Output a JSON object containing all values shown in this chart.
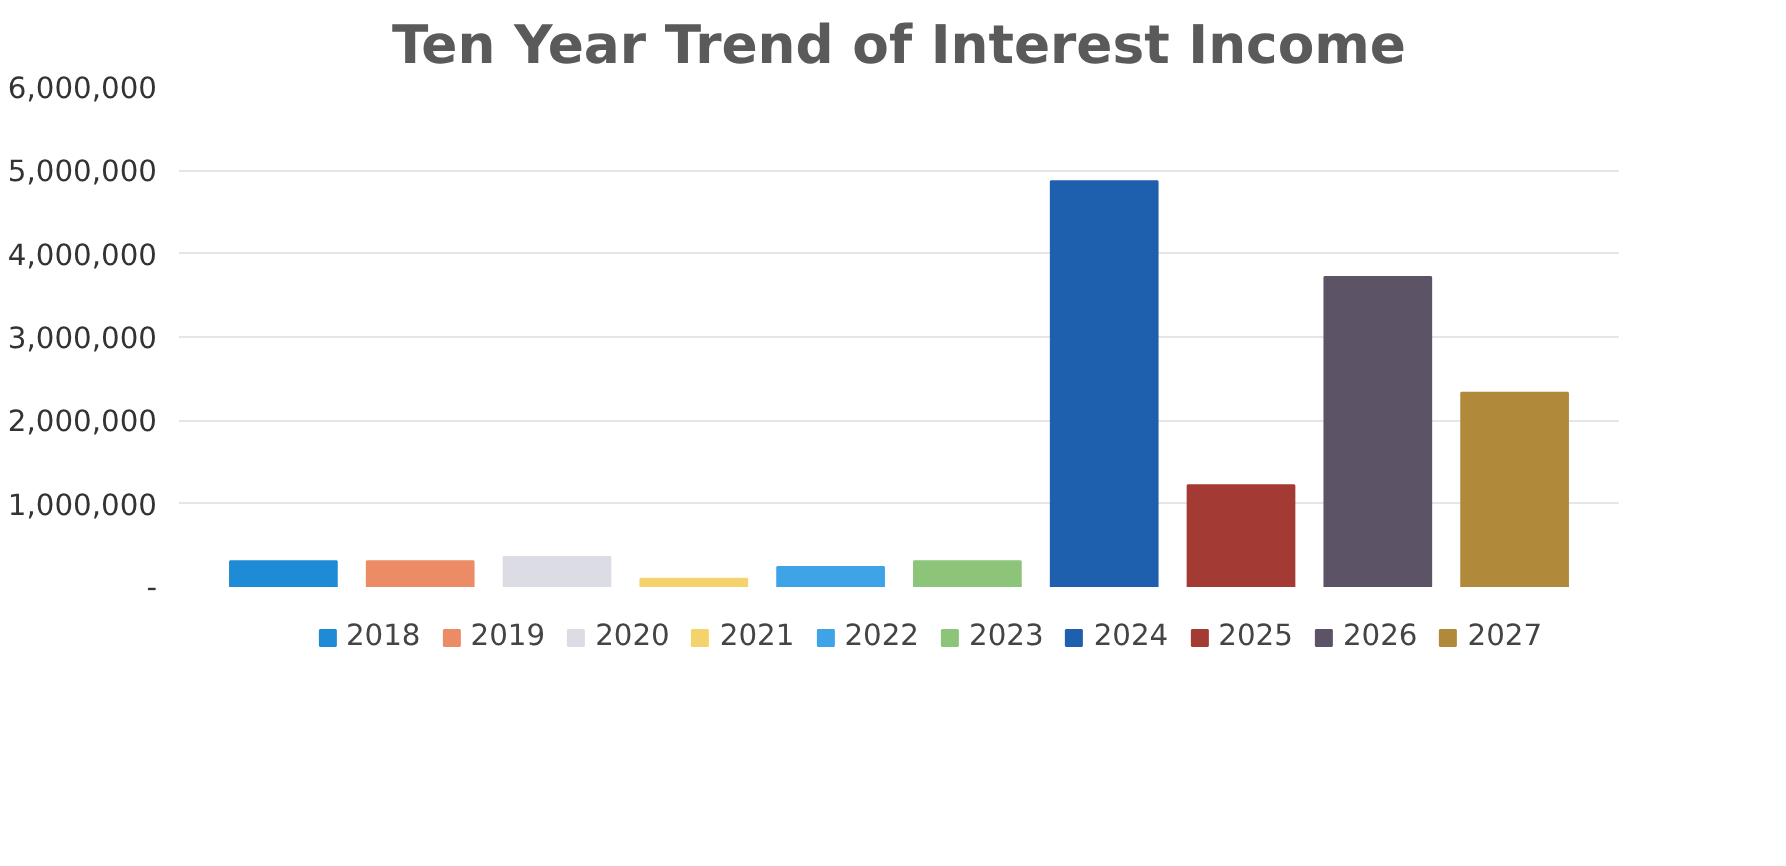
{
  "chart_data": {
    "type": "bar",
    "title": "Ten Year Trend of Interest Income",
    "categories": [
      null
    ],
    "series": [
      {
        "name": "2018",
        "color": "#1f8ad6",
        "values": [
          310000
        ]
      },
      {
        "name": "2019",
        "color": "#ec8c66",
        "values": [
          310000
        ]
      },
      {
        "name": "2020",
        "color": "#dcdce4",
        "values": [
          360000
        ]
      },
      {
        "name": "2021",
        "color": "#f5d36c",
        "values": [
          100000
        ]
      },
      {
        "name": "2022",
        "color": "#3fa3e8",
        "values": [
          240000
        ]
      },
      {
        "name": "2023",
        "color": "#8cc47a",
        "values": [
          310000
        ]
      },
      {
        "name": "2024",
        "color": "#1e5fae",
        "values": [
          4870000
        ]
      },
      {
        "name": "2025",
        "color": "#a33b34",
        "values": [
          1220000
        ]
      },
      {
        "name": "2026",
        "color": "#5c5466",
        "values": [
          3720000
        ]
      },
      {
        "name": "2027",
        "color": "#b08a3a",
        "values": [
          2330000
        ]
      }
    ],
    "ylim": [
      0,
      6000000
    ],
    "yticks": [
      {
        "value": 0,
        "label": "-"
      },
      {
        "value": 1000000,
        "label": "1,000,000"
      },
      {
        "value": 2000000,
        "label": "2,000,000"
      },
      {
        "value": 3000000,
        "label": "3,000,000"
      },
      {
        "value": 4000000,
        "label": "4,000,000"
      },
      {
        "value": 5000000,
        "label": "5,000,000"
      },
      {
        "value": 6000000,
        "label": "6,000,000"
      }
    ],
    "grid": "y",
    "legend": "bottom"
  }
}
